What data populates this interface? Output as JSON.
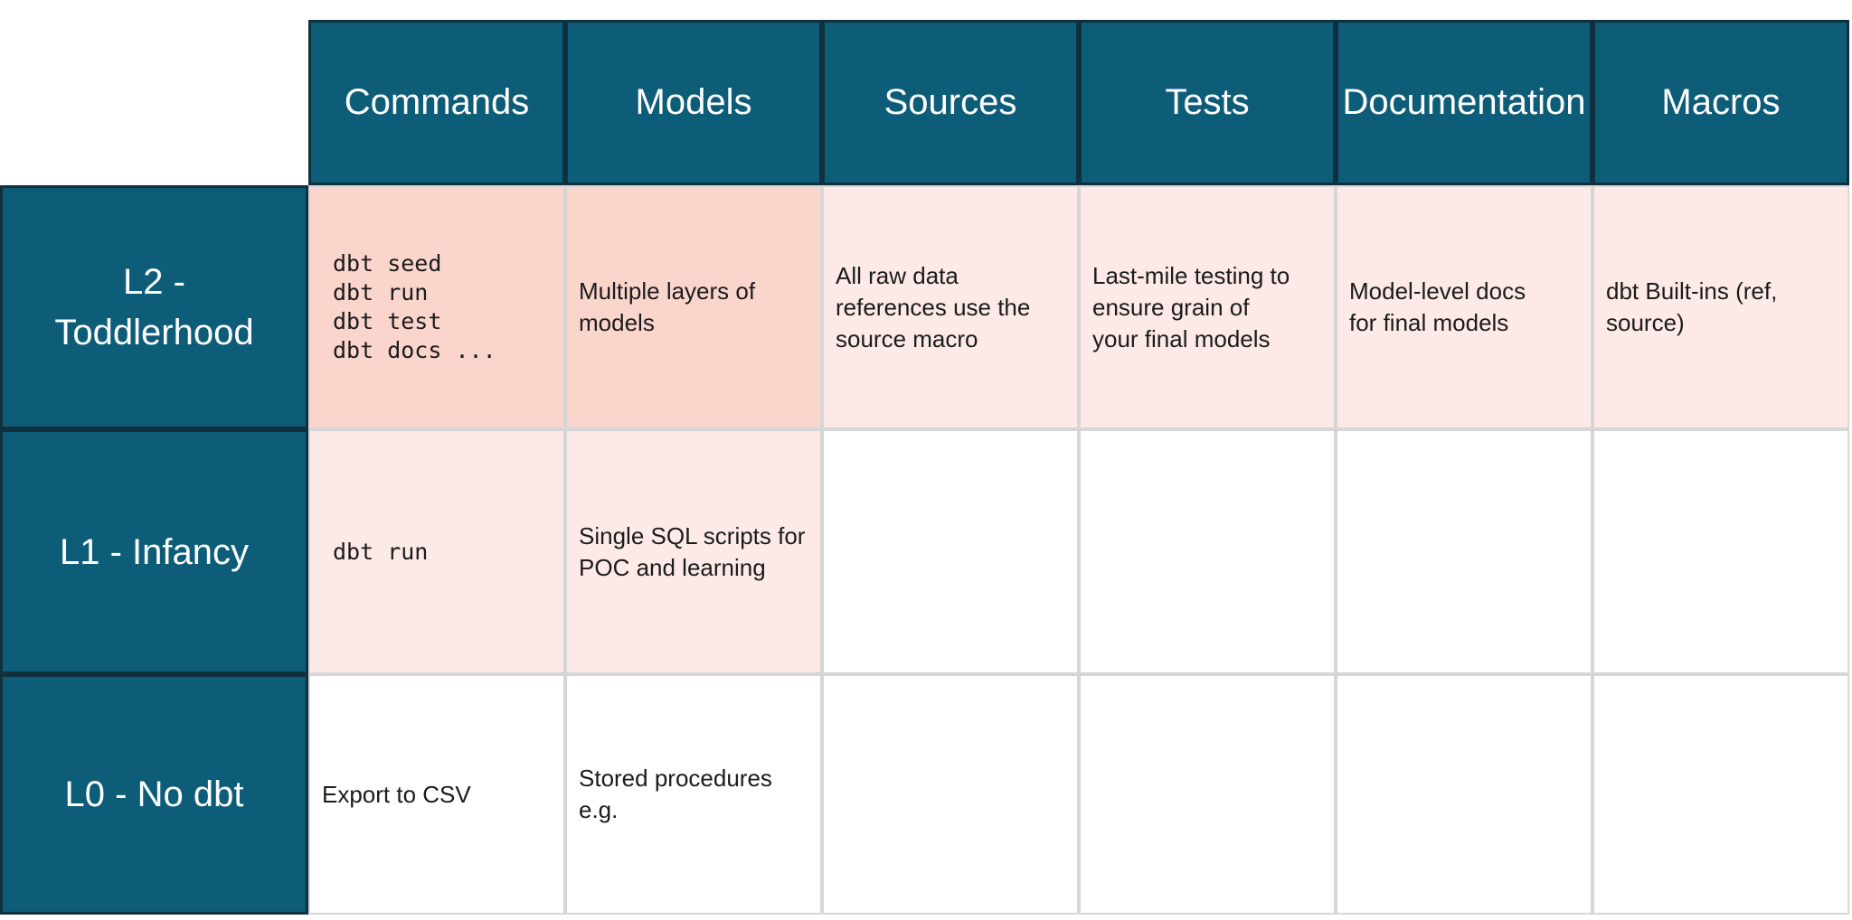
{
  "colors": {
    "teal": "#0d5c78",
    "teal_border": "#11303e",
    "grid_line": "#d6d6d6",
    "pink_strong": "#fad5cc",
    "pink_light": "#fdeae8",
    "text_dark": "#1b1b1b",
    "text_light": "#ffffff",
    "background": "#ffffff"
  },
  "table": {
    "columns": [
      "Commands",
      "Models",
      "Sources",
      "Tests",
      "Documentation",
      "Macros"
    ],
    "rows": [
      {
        "label": "L2 - Toddlerhood",
        "label_lines": [
          "L2 -",
          "Toddlerhood"
        ],
        "cells": [
          {
            "style": "mono",
            "lines": [
              "dbt seed",
              "dbt run",
              "dbt test",
              "dbt docs ..."
            ]
          },
          {
            "lines": [
              "Multiple layers of",
              "models"
            ]
          },
          {
            "lines": [
              "All raw data",
              "references use the",
              "source macro"
            ]
          },
          {
            "lines": [
              "Last-mile testing to",
              "ensure grain of",
              "your final models"
            ]
          },
          {
            "lines": [
              "Model-level docs",
              "for final models"
            ]
          },
          {
            "lines": [
              "dbt Built-ins (ref,",
              "source)"
            ]
          }
        ]
      },
      {
        "label": "L1 - Infancy",
        "label_lines": [
          "L1 - Infancy"
        ],
        "cells": [
          {
            "style": "mono",
            "lines": [
              "dbt run"
            ]
          },
          {
            "lines": [
              "Single SQL scripts for",
              "POC and learning"
            ]
          },
          {
            "lines": []
          },
          {
            "lines": []
          },
          {
            "lines": []
          },
          {
            "lines": []
          }
        ]
      },
      {
        "label": "L0 - No dbt",
        "label_lines": [
          "L0 - No dbt"
        ],
        "cells": [
          {
            "lines": [
              "Export to CSV"
            ]
          },
          {
            "lines": [
              "Stored procedures",
              "e.g."
            ]
          },
          {
            "lines": []
          },
          {
            "lines": []
          },
          {
            "lines": []
          },
          {
            "lines": []
          }
        ]
      }
    ]
  }
}
